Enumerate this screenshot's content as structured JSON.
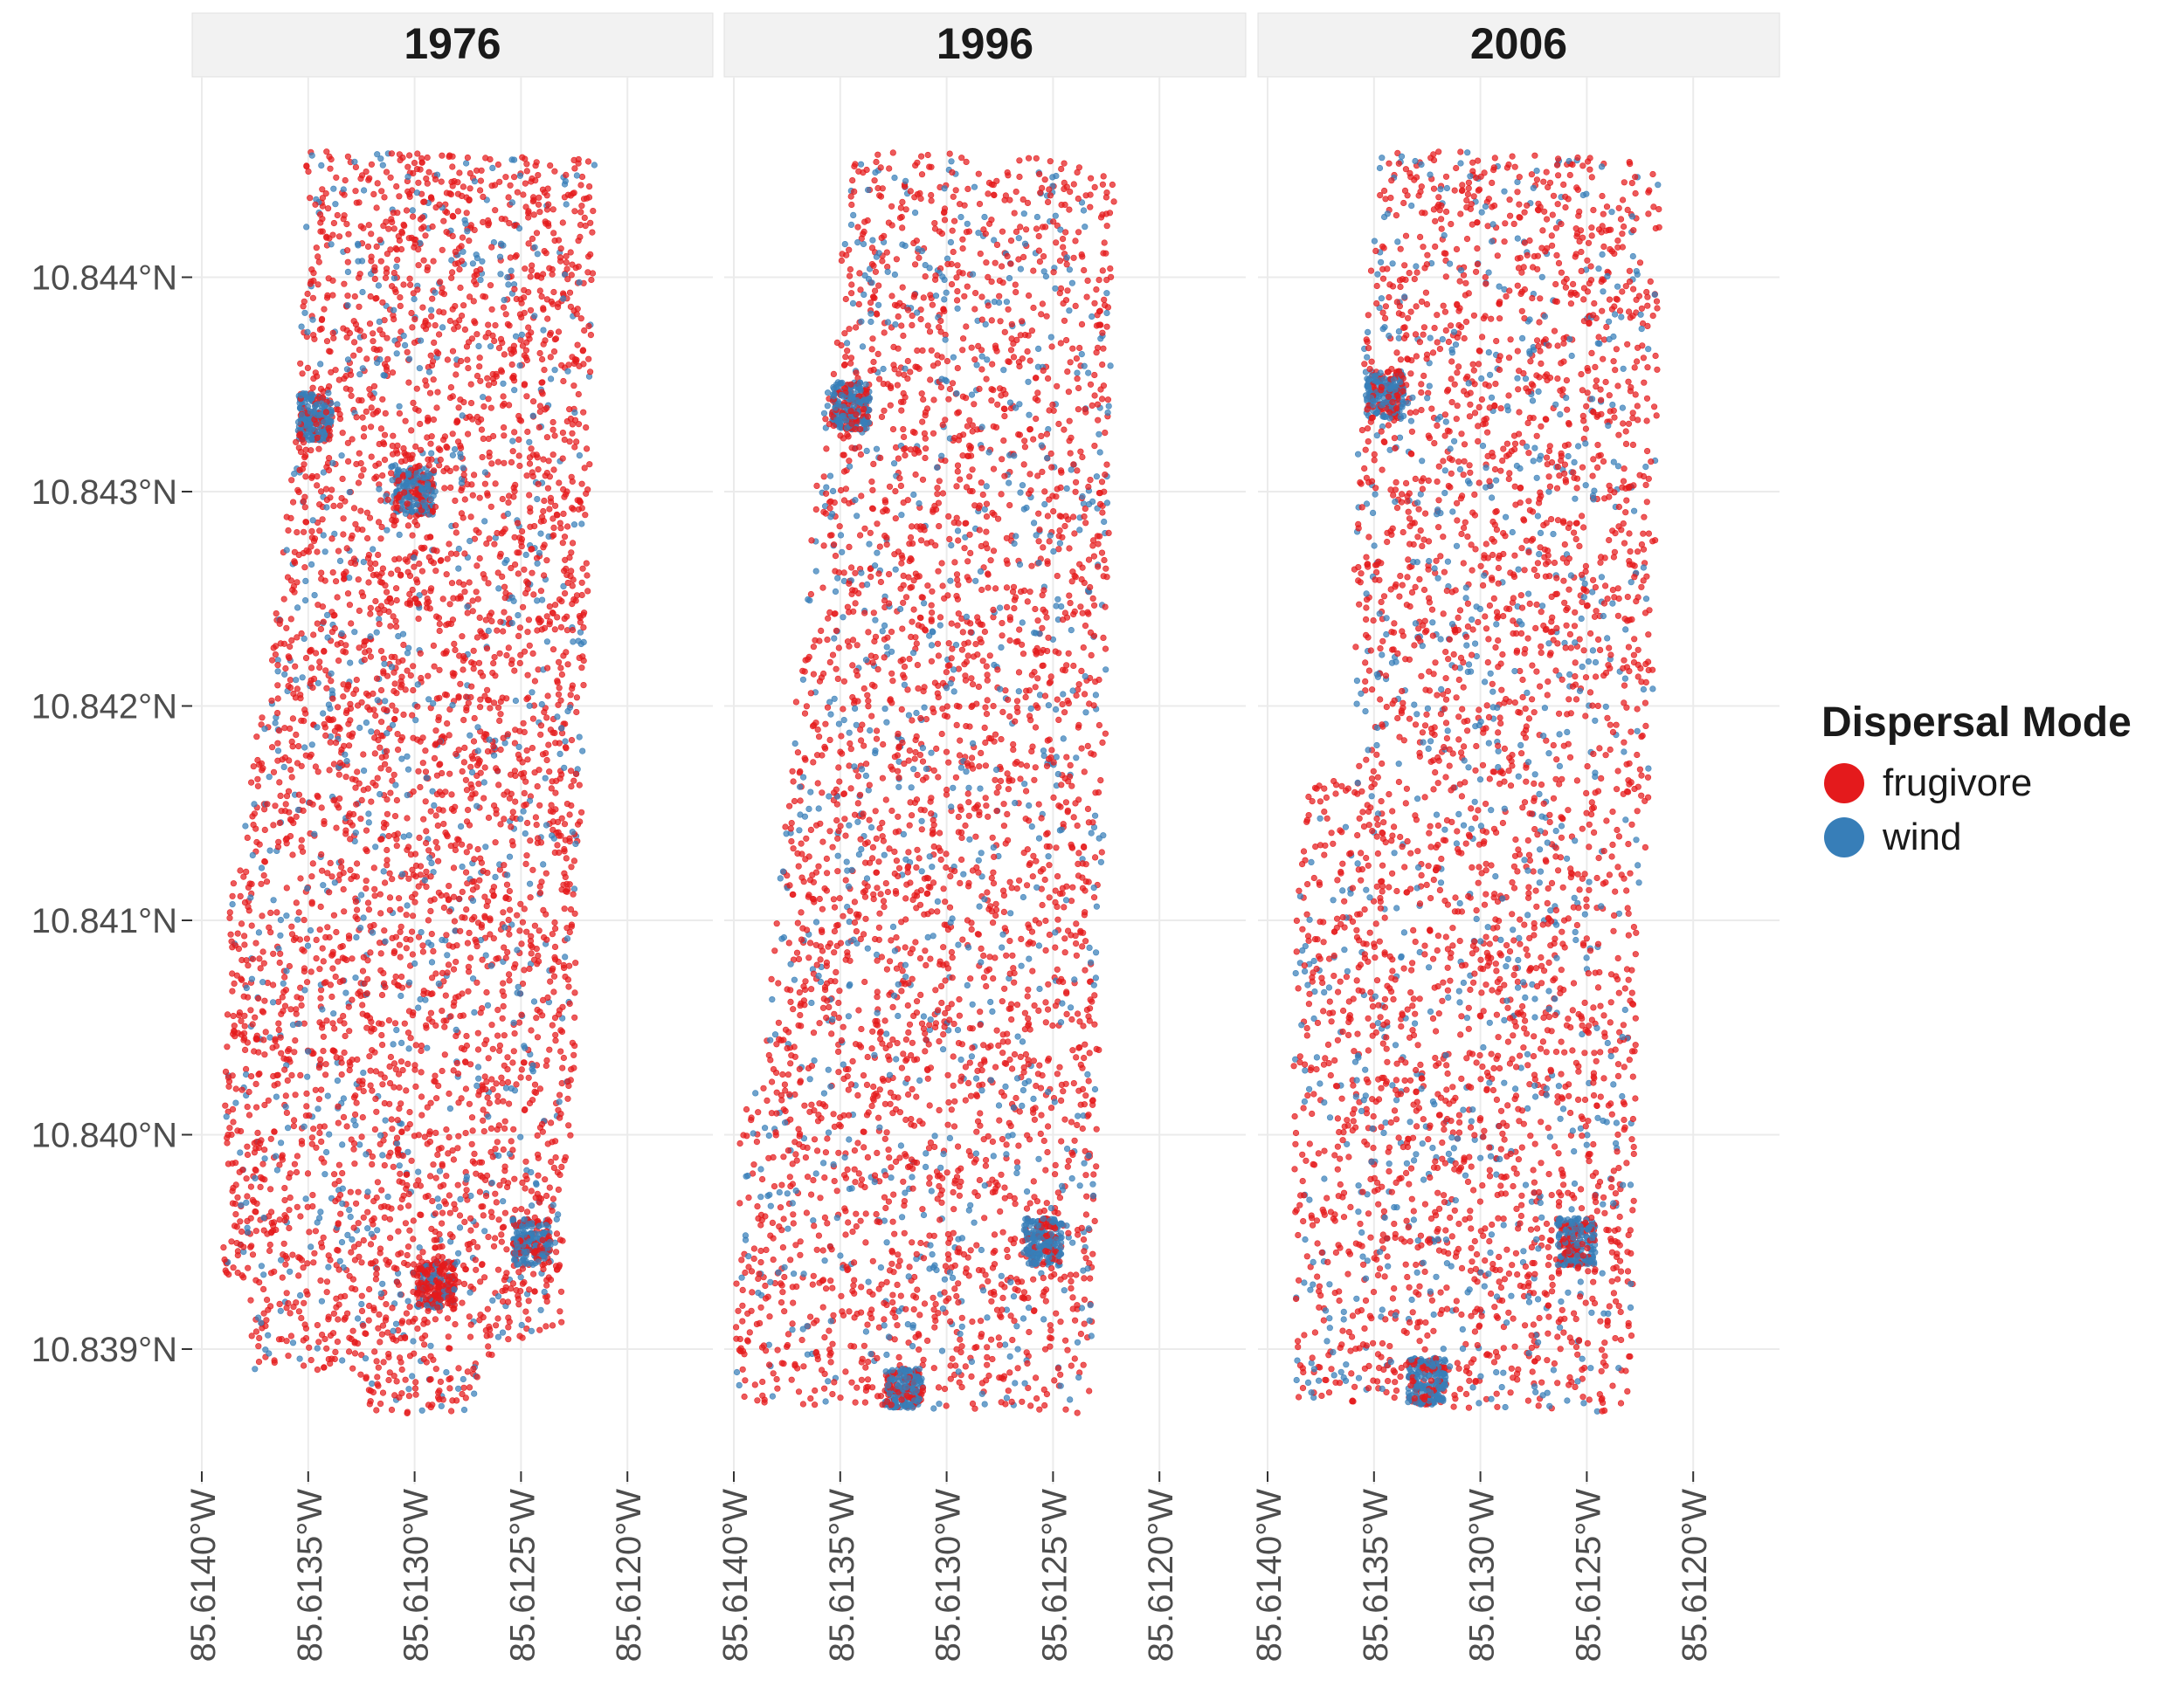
{
  "chart_data": {
    "type": "scatter",
    "title": "",
    "xlabel": "",
    "ylabel": "",
    "facets": [
      "1976",
      "1996",
      "2006"
    ],
    "x_ticks": [
      "85.6140°W",
      "85.6135°W",
      "85.6130°W",
      "85.6125°W",
      "85.6120°W"
    ],
    "x_tick_values": [
      -85.614,
      -85.6135,
      -85.613,
      -85.6125,
      -85.612
    ],
    "y_ticks": [
      "10.839°N",
      "10.840°N",
      "10.841°N",
      "10.842°N",
      "10.843°N",
      "10.844°N"
    ],
    "y_tick_values": [
      10.839,
      10.84,
      10.841,
      10.842,
      10.843,
      10.844
    ],
    "xlim": [
      -85.61411,
      -85.61169
    ],
    "ylim": [
      10.8385,
      10.8447
    ],
    "grid": true,
    "legend": {
      "title": "Dispersal Mode",
      "position": "right",
      "entries": [
        {
          "label": "frugivore",
          "color": "#E41A1C"
        },
        {
          "label": "wind",
          "color": "#377EB8"
        }
      ]
    },
    "series": [
      {
        "name": "frugivore",
        "color": "#E41A1C"
      },
      {
        "name": "wind",
        "color": "#377EB8"
      }
    ],
    "plot_polygons_lonlat": {
      "1976": [
        [
          -85.61351,
          10.8446
        ],
        [
          -85.61215,
          10.84455
        ],
        [
          -85.61219,
          10.8423
        ],
        [
          -85.61226,
          10.84
        ],
        [
          -85.6123,
          10.8398
        ],
        [
          -85.6123,
          10.8391
        ],
        [
          -85.61261,
          10.839
        ],
        [
          -85.61275,
          10.8387
        ],
        [
          -85.61325,
          10.8387
        ],
        [
          -85.61328,
          10.8389
        ],
        [
          -85.61375,
          10.8389
        ],
        [
          -85.6138,
          10.8393
        ],
        [
          -85.6139,
          10.83935
        ],
        [
          -85.61388,
          10.841
        ],
        [
          -85.61368,
          10.84225
        ],
        [
          -85.61355,
          10.8433
        ]
      ],
      "1996": [
        [
          -85.61344,
          10.8446
        ],
        [
          -85.61221,
          10.84455
        ],
        [
          -85.61225,
          10.842
        ],
        [
          -85.61232,
          10.8387
        ],
        [
          -85.614,
          10.83875
        ],
        [
          -85.61397,
          10.8402
        ],
        [
          -85.61386,
          10.84022
        ],
        [
          -85.61382,
          10.8408
        ],
        [
          -85.61362,
          10.843
        ]
      ],
      "2006": [
        [
          -85.61347,
          10.8446
        ],
        [
          -85.61214,
          10.84455
        ],
        [
          -85.6122,
          10.8415
        ],
        [
          -85.61226,
          10.8411
        ],
        [
          -85.61229,
          10.8387
        ],
        [
          -85.61387,
          10.83875
        ],
        [
          -85.61388,
          10.8404
        ],
        [
          -85.61385,
          10.8416
        ],
        [
          -85.61358,
          10.8417
        ],
        [
          -85.6136,
          10.843
        ]
      ]
    },
    "dense_clusters": [
      {
        "facet": "1976",
        "lon": -85.61348,
        "lat": 10.84335,
        "series": "wind"
      },
      {
        "facet": "1976",
        "lon": -85.613,
        "lat": 10.843,
        "series": "wind"
      },
      {
        "facet": "1976",
        "lon": -85.61245,
        "lat": 10.8395,
        "series": "wind"
      },
      {
        "facet": "1976",
        "lon": -85.6129,
        "lat": 10.8393,
        "series": "frugivore"
      },
      {
        "facet": "1996",
        "lon": -85.61255,
        "lat": 10.8395,
        "series": "wind"
      },
      {
        "facet": "1996",
        "lon": -85.61345,
        "lat": 10.8434,
        "series": "wind"
      },
      {
        "facet": "1996",
        "lon": -85.6132,
        "lat": 10.8388,
        "series": "wind"
      },
      {
        "facet": "2006",
        "lon": -85.61255,
        "lat": 10.8395,
        "series": "wind"
      },
      {
        "facet": "2006",
        "lon": -85.61345,
        "lat": 10.84345,
        "series": "wind"
      },
      {
        "facet": "2006",
        "lon": -85.61325,
        "lat": 10.83885,
        "series": "wind"
      }
    ]
  }
}
